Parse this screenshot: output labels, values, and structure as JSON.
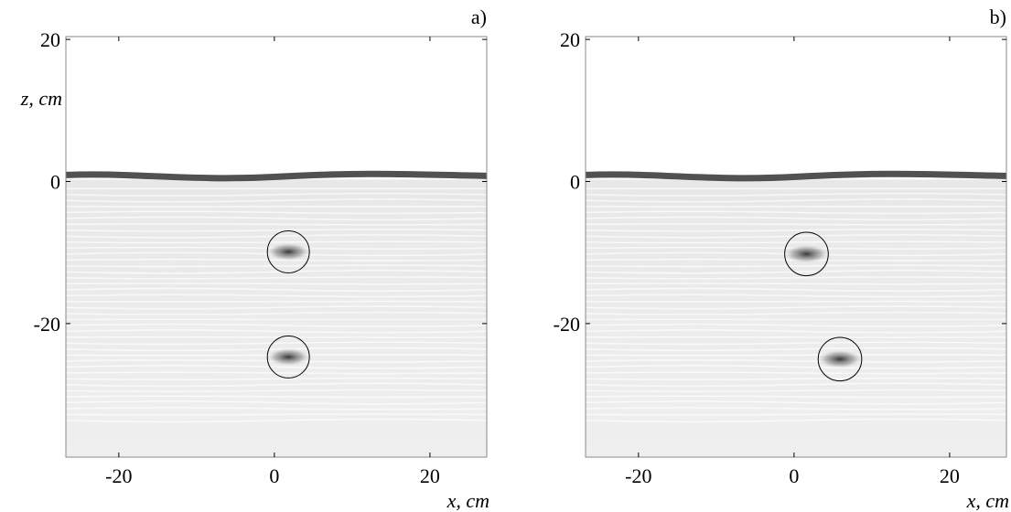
{
  "chart_data": [
    {
      "type": "scatter",
      "panel_label": "a)",
      "xlabel": "x, cm",
      "ylabel": "z, cm",
      "xlim": [
        -26.8,
        27.3
      ],
      "ylim": [
        -38.8,
        20.4
      ],
      "xticks": [
        -20,
        0,
        20
      ],
      "yticks": [
        20,
        0,
        -20
      ],
      "circles": {
        "x": [
          1.8,
          1.8
        ],
        "y": [
          -9.9,
          -24.7
        ],
        "r": [
          2.7,
          2.7
        ]
      }
    },
    {
      "type": "scatter",
      "panel_label": "b)",
      "xlabel": "x, cm",
      "xlim": [
        -26.8,
        27.3
      ],
      "ylim": [
        -38.8,
        20.4
      ],
      "xticks": [
        -20,
        0,
        20
      ],
      "yticks": [
        20,
        0,
        -20
      ],
      "circles": {
        "x": [
          1.6,
          5.9
        ],
        "y": [
          -10.2,
          -25.0
        ],
        "r": [
          2.8,
          2.8
        ]
      }
    }
  ]
}
